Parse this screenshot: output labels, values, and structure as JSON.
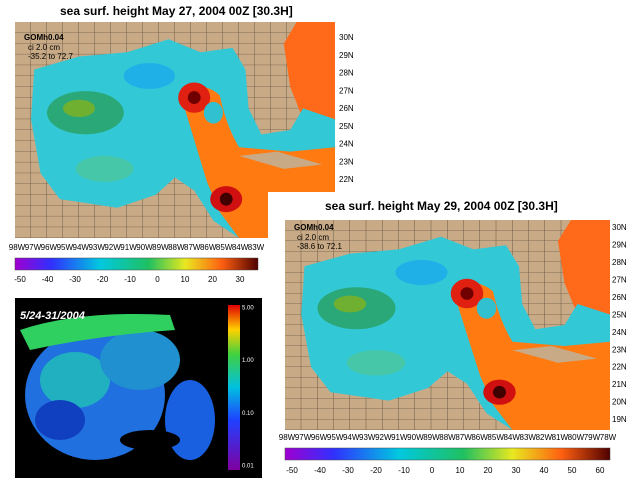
{
  "panels": [
    {
      "title": "sea surf. height    May 27, 2004  00Z   [30.3H]",
      "model": "GOMh0.04",
      "interval": "ci 2.0 cm",
      "range": "-35.2 to 72.7",
      "lats": [
        "30N",
        "29N",
        "28N",
        "27N",
        "26N",
        "25N",
        "24N",
        "23N",
        "22N"
      ],
      "lons": [
        "98W",
        "97W",
        "96W",
        "95W",
        "94W",
        "93W",
        "92W",
        "91W",
        "90W",
        "89W",
        "88W",
        "87W",
        "86W",
        "85W",
        "84W",
        "83W"
      ],
      "colorbar": [
        -50,
        -40,
        -30,
        -20,
        -10,
        0,
        10,
        20,
        30
      ]
    },
    {
      "title": "sea surf. height    May 29, 2004  00Z   [30.3H]",
      "model": "GOMh0.04",
      "interval": "ci 2.0 cm",
      "range": "-38.6 to 72.1",
      "lats": [
        "30N",
        "29N",
        "28N",
        "27N",
        "26N",
        "25N",
        "24N",
        "23N",
        "22N",
        "21N",
        "20N",
        "19N"
      ],
      "lons": [
        "98W",
        "97W",
        "96W",
        "95W",
        "94W",
        "93W",
        "92W",
        "91W",
        "90W",
        "89W",
        "88W",
        "87W",
        "86W",
        "85W",
        "84W",
        "83W",
        "82W",
        "81W",
        "80W",
        "79W",
        "78W"
      ],
      "colorbar": [
        -50,
        -40,
        -30,
        -20,
        -10,
        0,
        10,
        20,
        30,
        40,
        50,
        60
      ]
    }
  ],
  "satellite": {
    "label": "5/24-31/2004",
    "colorbar": [
      "5.00",
      "1.00",
      "0.10",
      "0.01"
    ]
  }
}
